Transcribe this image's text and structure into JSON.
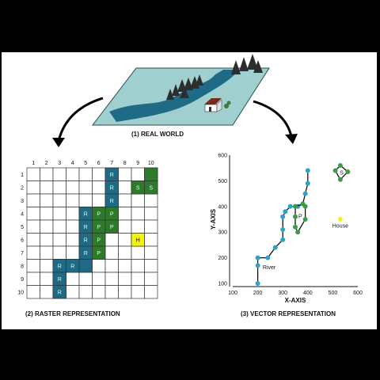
{
  "labels": {
    "real_world": "(1) REAL WORLD",
    "raster": "(2) RASTER REPRESENTATION",
    "vector": "(3) VECTOR REPRESENTATION"
  },
  "raster": {
    "col_labels": [
      "1",
      "2",
      "3",
      "4",
      "5",
      "6",
      "7",
      "8",
      "9",
      "10"
    ],
    "row_labels": [
      "1",
      "2",
      "3",
      "4",
      "5",
      "6",
      "7",
      "8",
      "9",
      "10"
    ],
    "cells": [
      {
        "r": 1,
        "c": 7,
        "t": "R",
        "k": "river"
      },
      {
        "r": 2,
        "c": 7,
        "t": "R",
        "k": "river"
      },
      {
        "r": 3,
        "c": 7,
        "t": "R",
        "k": "river"
      },
      {
        "r": 4,
        "c": 5,
        "t": "R",
        "k": "river"
      },
      {
        "r": 4,
        "c": 6,
        "t": "P",
        "k": "park"
      },
      {
        "r": 4,
        "c": 7,
        "t": "P",
        "k": "park"
      },
      {
        "r": 5,
        "c": 5,
        "t": "R",
        "k": "river"
      },
      {
        "r": 5,
        "c": 6,
        "t": "P",
        "k": "park"
      },
      {
        "r": 5,
        "c": 7,
        "t": "P",
        "k": "park"
      },
      {
        "r": 6,
        "c": 5,
        "t": "R",
        "k": "river"
      },
      {
        "r": 6,
        "c": 6,
        "t": "P",
        "k": "park"
      },
      {
        "r": 7,
        "c": 5,
        "t": "R",
        "k": "river"
      },
      {
        "r": 7,
        "c": 6,
        "t": "P",
        "k": "park"
      },
      {
        "r": 8,
        "c": 3,
        "t": "R",
        "k": "river"
      },
      {
        "r": 8,
        "c": 4,
        "t": "R",
        "k": "river"
      },
      {
        "r": 8,
        "c": 5,
        "t": "",
        "k": "river"
      },
      {
        "r": 9,
        "c": 3,
        "t": "R",
        "k": "river"
      },
      {
        "r": 10,
        "c": 3,
        "t": "R",
        "k": "river"
      },
      {
        "r": 1,
        "c": 10,
        "t": "",
        "k": "site"
      },
      {
        "r": 2,
        "c": 9,
        "t": "S",
        "k": "site"
      },
      {
        "r": 2,
        "c": 10,
        "t": "S",
        "k": "site"
      },
      {
        "r": 6,
        "c": 9,
        "t": "H",
        "k": "house"
      }
    ]
  },
  "vector": {
    "x_title": "X-AXIS",
    "y_title": "Y-AXIS",
    "x_ticks": [
      100,
      200,
      300,
      400,
      500,
      600
    ],
    "y_ticks": [
      100,
      200,
      300,
      400,
      500,
      600
    ],
    "river": [
      [
        200,
        100
      ],
      [
        200,
        170
      ],
      [
        200,
        200
      ],
      [
        240,
        200
      ],
      [
        270,
        240
      ],
      [
        300,
        270
      ],
      [
        300,
        310
      ],
      [
        300,
        360
      ],
      [
        310,
        380
      ],
      [
        330,
        400
      ],
      [
        360,
        400
      ],
      [
        380,
        410
      ],
      [
        390,
        450
      ],
      [
        400,
        490
      ],
      [
        400,
        540
      ]
    ],
    "park": [
      [
        350,
        400
      ],
      [
        380,
        410
      ],
      [
        390,
        400
      ],
      [
        390,
        350
      ],
      [
        360,
        300
      ],
      [
        350,
        320
      ],
      [
        350,
        360
      ]
    ],
    "site": [
      [
        510,
        540
      ],
      [
        530,
        560
      ],
      [
        560,
        535
      ],
      [
        530,
        505
      ]
    ],
    "house": [
      530,
      350
    ],
    "river_label": "River",
    "park_label": "P",
    "site_label": "S",
    "house_label": "House"
  },
  "colors": {
    "river": "#1f6b86",
    "park": "#2c7a2a",
    "site": "#2c7a2a",
    "house": "#f4f40a",
    "vector_river": "#2aa3c7",
    "vector_park": "#3f9a47",
    "land": "#9fd0cf"
  }
}
